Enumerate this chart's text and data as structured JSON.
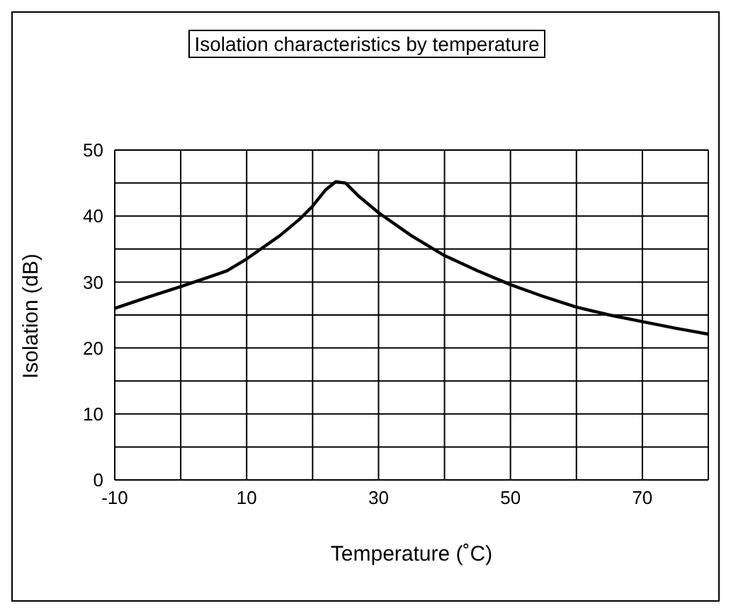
{
  "chart_data": {
    "type": "line",
    "title": "Isolation characteristics by temperature",
    "xlabel": "Temperature (˚C)",
    "ylabel": "Isolation (dB)",
    "x": [
      -10,
      -5,
      0,
      5,
      7,
      10,
      15,
      18,
      20,
      22,
      23.5,
      25,
      27,
      30,
      35,
      40,
      45,
      50,
      55,
      60,
      65,
      70,
      75,
      80
    ],
    "series": [
      {
        "color": "#000000",
        "values": [
          26,
          27.7,
          29.3,
          31,
          31.7,
          33.5,
          37,
          39.5,
          41.5,
          44,
          45.2,
          45,
          43,
          40.5,
          37,
          34,
          31.7,
          29.6,
          27.8,
          26.2,
          25,
          24,
          23,
          22.1
        ]
      }
    ],
    "xlim": [
      -10,
      80
    ],
    "xticks": [
      -10,
      {
        "value": 0,
        "label": null
      },
      10,
      {
        "value": 20,
        "label": null
      },
      30,
      {
        "value": 40,
        "label": null
      },
      50,
      {
        "value": 60,
        "label": null
      },
      70,
      {
        "value": 80,
        "label": null
      }
    ],
    "ylim": [
      0,
      50
    ],
    "yticks": [
      0,
      {
        "value": 5,
        "label": null
      },
      10,
      {
        "value": 15,
        "label": null
      },
      20,
      {
        "value": 25,
        "label": null
      },
      30,
      {
        "value": 35,
        "label": null
      },
      40,
      {
        "value": 45,
        "label": null
      },
      50
    ],
    "grid": true,
    "legend": false,
    "marker": "none",
    "line_style": "solid"
  }
}
